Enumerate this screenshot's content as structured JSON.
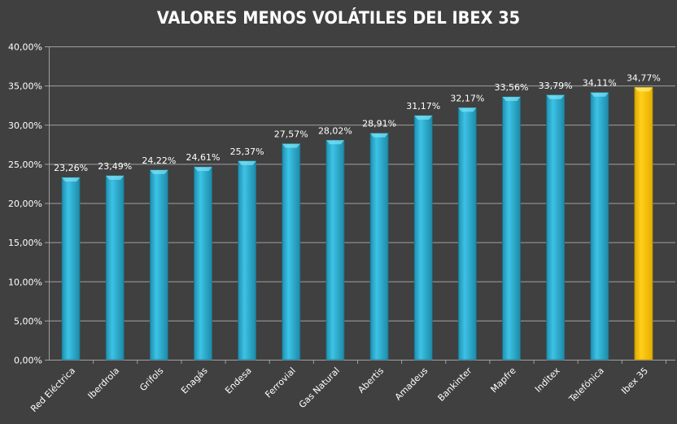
{
  "chart_data": {
    "type": "bar",
    "title": "VALORES MENOS VOLÁTILES DEL IBEX 35",
    "xlabel": "",
    "ylabel": "",
    "ylim": [
      0,
      40
    ],
    "yticks": [
      "0,00%",
      "5,00%",
      "10,00%",
      "15,00%",
      "20,00%",
      "25,00%",
      "30,00%",
      "35,00%",
      "40,00%"
    ],
    "grid": true,
    "categories": [
      "Red Eléctrica",
      "Iberdrola",
      "Grifols",
      "Enagás",
      "Endesa",
      "Ferrovial",
      "Gas Natural",
      "Abertis",
      "Amadeus",
      "Bankinter",
      "Mapfre",
      "Inditex",
      "Telefónica",
      "Ibex 35"
    ],
    "values": [
      23.26,
      23.49,
      24.22,
      24.61,
      25.37,
      27.57,
      28.02,
      28.91,
      31.17,
      32.17,
      33.56,
      33.79,
      34.11,
      34.77
    ],
    "labels": [
      "23,26%",
      "23,49%",
      "24,22%",
      "24,61%",
      "25,37%",
      "27,57%",
      "28,02%",
      "28,91%",
      "31,17%",
      "32,17%",
      "33,56%",
      "33,79%",
      "34,11%",
      "34,77%"
    ],
    "colors": {
      "default": "#2fb4d6",
      "highlight": "#ffc000",
      "grid": "#a0a0a0",
      "axis": "#a0a0a0"
    },
    "highlight_index": 13
  }
}
